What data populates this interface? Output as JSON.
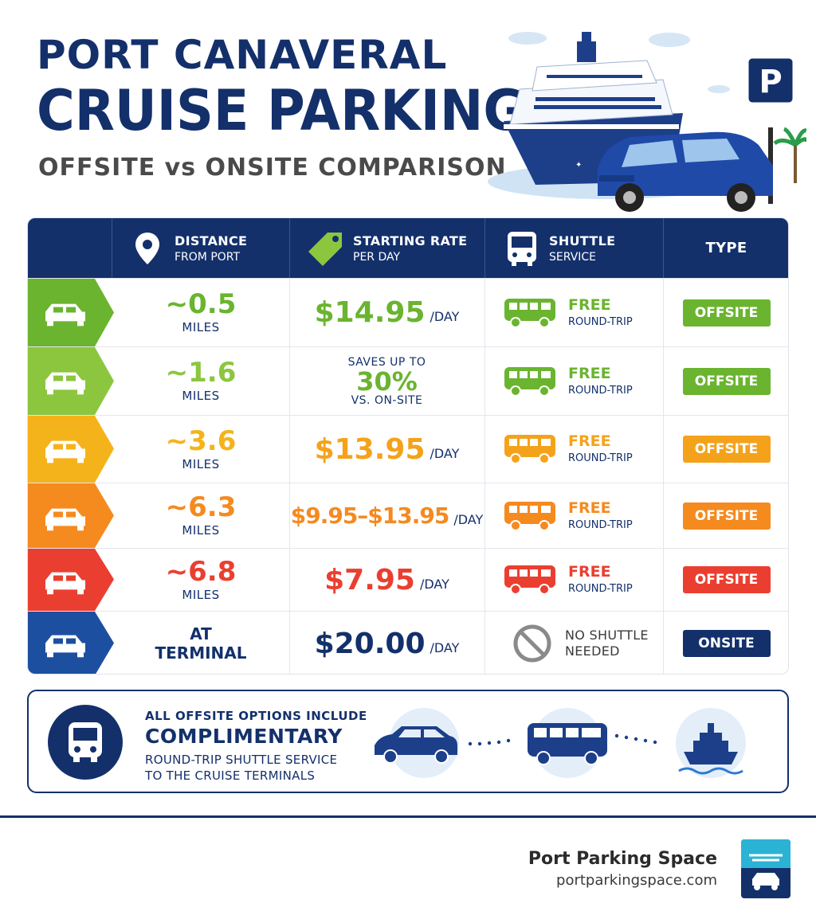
{
  "header": {
    "title_line1": "PORT CANAVERAL",
    "title_line2": "CRUISE PARKING",
    "subtitle": "OFFSITE vs ONSITE COMPARISON",
    "parking_sign": "P"
  },
  "table": {
    "columns": [
      {
        "line1": "DISTANCE",
        "line2": "FROM PORT",
        "icon": "map-pin-icon"
      },
      {
        "line1": "STARTING RATE",
        "line2": "PER DAY",
        "icon": "price-tag-icon"
      },
      {
        "line1": "SHUTTLE",
        "line2": "SERVICE",
        "icon": "bus-icon"
      },
      {
        "line1": "TYPE",
        "line2": ""
      }
    ],
    "rows": [
      {
        "color": "#6ab42f",
        "distance": "~0.5",
        "unit": "MILES",
        "rate": "$14.95",
        "rate_suffix": "/DAY",
        "shuttle": "FREE",
        "shuttle_sub": "ROUND-TRIP",
        "type": "OFFSITE"
      },
      {
        "color": "#8cc63f",
        "badge_color": "#6ab42f",
        "distance": "~1.6",
        "unit": "MILES",
        "save_line1": "SAVES UP TO",
        "save_value": "30%",
        "save_line3": "VS. ON-SITE",
        "shuttle": "FREE",
        "shuttle_sub": "ROUND-TRIP",
        "type": "OFFSITE"
      },
      {
        "color": "#f5b31b",
        "distance": "~3.6",
        "unit": "MILES",
        "rate": "$13.95",
        "rate_suffix": "/DAY",
        "shuttle": "FREE",
        "shuttle_sub": "ROUND-TRIP",
        "type": "OFFSITE"
      },
      {
        "color": "#f58a1f",
        "distance": "~6.3",
        "unit": "MILES",
        "rate": "$9.95–$13.95",
        "rate_suffix": "/DAY",
        "shuttle": "FREE",
        "shuttle_sub": "ROUND-TRIP",
        "type": "OFFSITE"
      },
      {
        "color": "#ea3f30",
        "distance": "~6.8",
        "unit": "MILES",
        "rate": "$7.95",
        "rate_suffix": "/DAY",
        "shuttle": "FREE",
        "shuttle_sub": "ROUND-TRIP",
        "type": "OFFSITE"
      },
      {
        "color": "#1d4fa0",
        "badge_color": "#13306b",
        "distance_line1": "AT",
        "distance_line2": "TERMINAL",
        "rate": "$20.00",
        "rate_suffix": "/DAY",
        "shuttle_line1": "NO SHUTTLE",
        "shuttle_line2": "NEEDED",
        "type": "ONSITE"
      }
    ]
  },
  "info": {
    "line1": "ALL OFFSITE OPTIONS INCLUDE",
    "line2": "COMPLIMENTARY",
    "line3": "ROUND-TRIP SHUTTLE SERVICE",
    "line4": "TO THE CRUISE TERMINALS"
  },
  "brand": {
    "name": "Port Parking Space",
    "url": "portparkingspace.com"
  },
  "colors": {
    "navy": "#13306b",
    "green": "#6ab42f",
    "lime": "#8cc63f",
    "yellow": "#f5b31b",
    "orange": "#f58a1f",
    "red": "#ea3f30",
    "blue": "#1d4fa0"
  }
}
